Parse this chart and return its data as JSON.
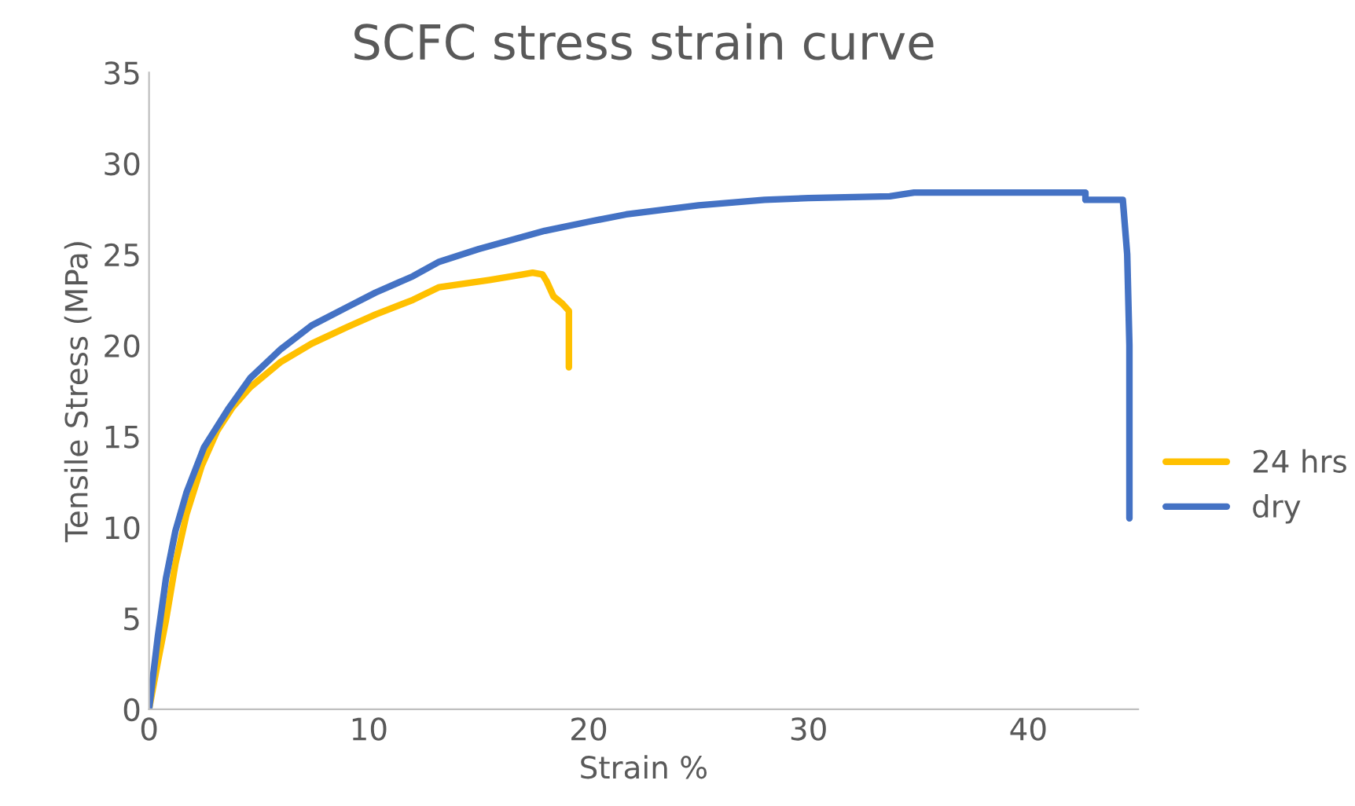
{
  "chart_data": {
    "type": "line",
    "title": "SCFC stress strain curve",
    "xlabel": "Strain %",
    "ylabel": "Tensile Stress (MPa)",
    "xlim": [
      0,
      45
    ],
    "ylim": [
      0,
      35
    ],
    "xticks": [
      0,
      10,
      20,
      30,
      40
    ],
    "yticks": [
      0,
      5,
      10,
      15,
      20,
      25,
      30,
      35
    ],
    "grid": false,
    "legend": "right",
    "marker": "none",
    "line_style": "solid",
    "series": [
      {
        "name": "24 hrs",
        "color": "#ffc000",
        "x": [
          0,
          0.4,
          0.77,
          1.2,
          1.7,
          2.4,
          3.1,
          3.8,
          4.6,
          6,
          7.4,
          9,
          10.3,
          12,
          13.2,
          15.5,
          17,
          17.45,
          17.9,
          18.1,
          18.4,
          18.8,
          19.1,
          19.1,
          19.1
        ],
        "values": [
          0,
          2.6,
          4.9,
          8,
          10.7,
          13.4,
          15.3,
          16.6,
          17.7,
          19.1,
          20.1,
          21,
          21.7,
          22.5,
          23.2,
          23.6,
          23.9,
          24,
          23.9,
          23.5,
          22.7,
          22.3,
          21.9,
          20.5,
          18.8
        ]
      },
      {
        "name": "dry",
        "color": "#4472c4",
        "x": [
          0,
          0.4,
          0.77,
          1.2,
          1.7,
          2.5,
          3.6,
          4.6,
          6,
          7.4,
          9,
          10.3,
          12,
          13.2,
          15,
          18,
          20,
          21.7,
          25,
          28,
          30,
          33.7,
          34.8,
          42.6,
          42.6,
          44.3,
          44.4,
          44.5,
          44.6,
          44.6
        ],
        "values": [
          0,
          4,
          7.2,
          9.8,
          11.9,
          14.4,
          16.5,
          18.2,
          19.8,
          21.1,
          22.1,
          22.9,
          23.8,
          24.6,
          25.3,
          26.3,
          26.8,
          27.2,
          27.7,
          28,
          28.1,
          28.2,
          28.4,
          28.4,
          28,
          28,
          26.5,
          25,
          20,
          10.5
        ]
      }
    ]
  }
}
